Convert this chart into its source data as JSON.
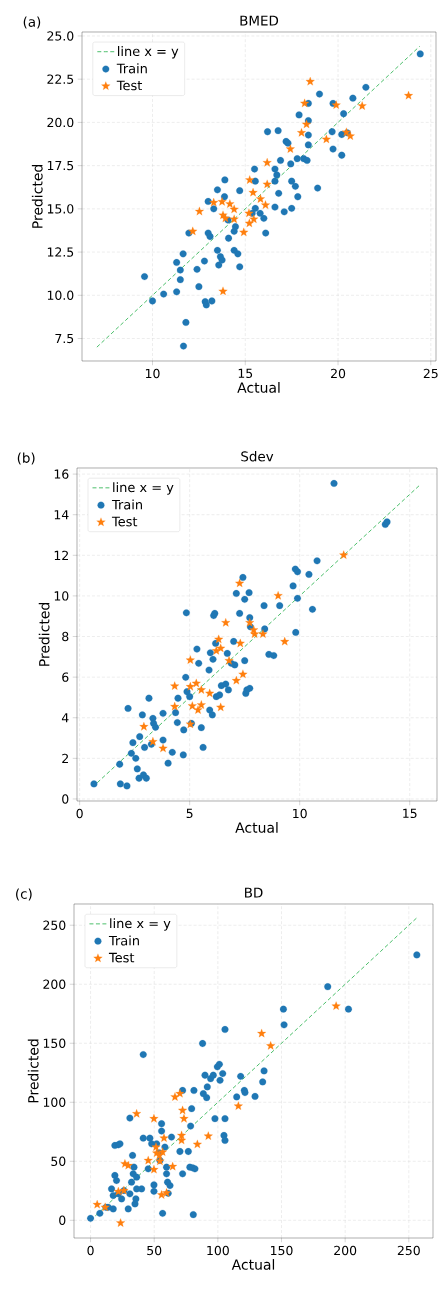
{
  "chart_data": [
    {
      "type": "scatter",
      "title": "BMED",
      "xlabel": "Actual",
      "ylabel": "Predicted",
      "annotations": [
        "(a)"
      ],
      "grid": true,
      "legend": "top left",
      "xlim": [
        6.2,
        25.28
      ],
      "ylim": [
        6.2,
        25.23
      ],
      "xticks": [
        10,
        15,
        20,
        25
      ],
      "yticks": [
        {
          "value": 7.5,
          "label": "7.5"
        },
        {
          "value": 10,
          "label": "10.0"
        },
        {
          "value": 12.5,
          "label": "12.5"
        },
        {
          "value": 15,
          "label": "15.0"
        },
        {
          "value": 17.5,
          "label": "17.5"
        },
        {
          "value": 20,
          "label": "20.0"
        },
        {
          "value": 22.5,
          "label": "22.5"
        },
        {
          "value": 25,
          "label": "25.0"
        }
      ],
      "series": [
        {
          "name": "line x = y",
          "type": "line",
          "line_style": "dashed",
          "marker": "none",
          "color": "#4cbf6b",
          "x": [
            7,
            24.4
          ],
          "values": [
            7,
            24.4
          ]
        },
        {
          "name": "Train",
          "marker": "circle",
          "color": "#1f77b4",
          "x": [
            9.57,
            10.0,
            10.6,
            11.3,
            11.3,
            11.5,
            11.5,
            11.65,
            11.8,
            11.67,
            11.96,
            12.4,
            12.5,
            12.8,
            12.84,
            12.9,
            13.2,
            13.0,
            13.1,
            13.0,
            13.3,
            13.5,
            13.5,
            13.66,
            13.57,
            13.75,
            13.9,
            13.88,
            14.07,
            14.1,
            14.4,
            14.47,
            14.4,
            14.6,
            14.7,
            14.7,
            15.5,
            15.54,
            15.54,
            15.37,
            15.8,
            16.0,
            16.1,
            16.2,
            16.6,
            16.6,
            16.6,
            16.7,
            16.77,
            16.8,
            16.9,
            17.1,
            17.2,
            17.3,
            17.45,
            17.5,
            17.5,
            17.7,
            17.83,
            17.8,
            17.9,
            18.15,
            18.33,
            18.4,
            18.4,
            18.4,
            18.4,
            18.9,
            19.0,
            19.73,
            19.68,
            19.73,
            20.2,
            20.3,
            20.5,
            20.8,
            21.5,
            24.43,
            20.2
          ],
          "values": [
            11.08,
            9.67,
            10.07,
            10.2,
            11.9,
            11.46,
            10.9,
            12.4,
            8.43,
            7.06,
            13.6,
            11.5,
            10.5,
            11.98,
            9.63,
            9.44,
            9.67,
            13.6,
            13.4,
            15.43,
            15.0,
            16.1,
            12.6,
            12.23,
            11.75,
            12.04,
            16.67,
            15.7,
            14.35,
            13.3,
            13.7,
            13.97,
            12.6,
            12.4,
            11.65,
            16.05,
            17.3,
            16.6,
            15.03,
            14.74,
            14.74,
            14.45,
            13.6,
            19.46,
            15.1,
            16.6,
            17.3,
            16.96,
            19.52,
            15.9,
            17.8,
            14.83,
            18.9,
            18.8,
            17.6,
            15.03,
            16.6,
            16.3,
            15.7,
            17.9,
            20.43,
            17.9,
            17.8,
            21.1,
            20.1,
            19.27,
            18.7,
            16.2,
            21.64,
            21.1,
            19.46,
            18.46,
            18.1,
            20.5,
            19.4,
            21.4,
            22.03,
            23.96,
            19.3
          ]
        },
        {
          "name": "Test",
          "marker": "star",
          "color": "#ff7f0e",
          "x": [
            12.17,
            12.53,
            13.3,
            13.8,
            13.75,
            13.8,
            13.93,
            14.17,
            14.4,
            14.4,
            14.92,
            15.2,
            15.24,
            15.22,
            15.42,
            15.46,
            15.82,
            16.09,
            16.18,
            16.18,
            17.43,
            18.03,
            18.2,
            18.3,
            18.5,
            19.37,
            19.9,
            20.45,
            20.66,
            21.3,
            23.8
          ],
          "values": [
            13.7,
            14.85,
            15.36,
            10.23,
            15.41,
            14.63,
            14.45,
            15.28,
            14.97,
            14.4,
            13.64,
            14.74,
            16.67,
            14.16,
            15.94,
            14.4,
            15.57,
            15.22,
            17.67,
            16.42,
            18.46,
            19.4,
            21.1,
            19.89,
            22.36,
            19.02,
            21.0,
            19.43,
            19.21,
            20.95,
            21.55
          ]
        }
      ]
    },
    {
      "type": "scatter",
      "title": "Sdev",
      "xlabel": "Actual",
      "ylabel": "Predicted",
      "annotations": [
        "(b)"
      ],
      "grid": true,
      "legend": "top left",
      "xlim": [
        -0.12,
        16.24
      ],
      "ylim": [
        -0.1,
        16.3
      ],
      "xticks": [
        0,
        5,
        10,
        15
      ],
      "yticks": [
        0,
        2,
        4,
        6,
        8,
        10,
        12,
        14,
        16
      ],
      "series": [
        {
          "name": "line x = y",
          "type": "line",
          "line_style": "dashed",
          "marker": "none",
          "color": "#4cbf6b",
          "x": [
            0.8,
            15.5
          ],
          "values": [
            0.8,
            15.5
          ]
        },
        {
          "name": "Train",
          "marker": "circle",
          "color": "#1f77b4",
          "x": [
            0.65,
            1.82,
            1.85,
            2.15,
            2.2,
            2.35,
            2.42,
            2.55,
            2.62,
            2.7,
            2.73,
            2.85,
            2.9,
            3.03,
            2.95,
            3.15,
            3.26,
            3.33,
            3.36,
            3.45,
            3.79,
            3.79,
            4.02,
            4.21,
            4.36,
            4.44,
            4.47,
            4.71,
            4.73,
            4.85,
            4.82,
            4.88,
            5.0,
            5.08,
            5.33,
            5.41,
            5.53,
            5.61,
            5.88,
            5.91,
            5.94,
            6.03,
            6.06,
            6.09,
            6.14,
            6.18,
            6.21,
            6.36,
            6.44,
            6.64,
            6.71,
            6.76,
            6.89,
            7.0,
            7.05,
            7.12,
            7.27,
            7.42,
            7.5,
            7.55,
            7.6,
            7.73,
            7.5,
            7.7,
            7.73,
            7.76,
            8.41,
            8.38,
            8.6,
            8.82,
            9.09,
            9.7,
            9.8,
            9.9,
            9.9,
            9.82,
            10.42,
            10.58,
            10.79,
            11.56,
            13.89,
            13.97
          ],
          "values": [
            0.74,
            1.71,
            0.74,
            0.64,
            4.46,
            2.25,
            2.77,
            2.0,
            1.48,
            1.02,
            3.07,
            4.14,
            1.18,
            1.02,
            2.54,
            4.96,
            2.69,
            3.97,
            3.72,
            3.53,
            4.22,
            2.9,
            1.76,
            2.3,
            4.25,
            3.76,
            4.96,
            2.17,
            3.4,
            9.17,
            5.99,
            5.28,
            5.04,
            3.72,
            7.38,
            6.68,
            3.51,
            2.54,
            6.35,
            4.38,
            7.2,
            4.14,
            6.88,
            9.03,
            9.14,
            7.66,
            5.04,
            5.12,
            5.58,
            5.66,
            7.17,
            5.37,
            6.68,
            7.76,
            6.6,
            10.12,
            9.14,
            10.91,
            6.81,
            5.2,
            5.37,
            5.45,
            9.83,
            10.16,
            8.93,
            8.48,
            8.37,
            9.52,
            7.12,
            7.06,
            9.52,
            10.49,
            11.32,
            11.19,
            9.88,
            8.2,
            11.06,
            9.34,
            11.73,
            15.54,
            13.52,
            13.64
          ]
        },
        {
          "name": "Test",
          "marker": "star",
          "color": "#ff7f0e",
          "x": [
            2.92,
            3.33,
            3.79,
            4.32,
            4.32,
            5.03,
            5.03,
            5.03,
            5.12,
            5.3,
            5.38,
            5.53,
            5.53,
            5.91,
            6.21,
            6.32,
            6.41,
            6.41,
            6.64,
            6.79,
            7.12,
            7.27,
            7.3,
            7.42,
            7.73,
            7.91,
            7.95,
            8.33,
            9.02,
            9.32,
            12.0
          ],
          "values": [
            3.56,
            2.82,
            2.49,
            4.55,
            5.56,
            6.84,
            3.68,
            5.53,
            4.58,
            5.69,
            4.38,
            4.63,
            5.37,
            5.2,
            7.3,
            7.86,
            7.42,
            4.51,
            8.68,
            6.81,
            5.83,
            10.62,
            7.66,
            6.14,
            8.68,
            8.32,
            8.12,
            8.12,
            10.01,
            7.75,
            12.01
          ]
        }
      ]
    },
    {
      "type": "scatter",
      "title": "BD",
      "xlabel": "Actual",
      "ylabel": "Predicted",
      "annotations": [
        "(c)"
      ],
      "grid": true,
      "legend": "top left",
      "xlim": [
        -13,
        269
      ],
      "ylim": [
        -15,
        268
      ],
      "xticks": [
        0,
        50,
        100,
        150,
        200,
        250
      ],
      "yticks": [
        0,
        50,
        100,
        150,
        200,
        250
      ],
      "series": [
        {
          "name": "line x = y",
          "type": "line",
          "line_style": "dashed",
          "marker": "none",
          "color": "#4cbf6b",
          "x": [
            0,
            256
          ],
          "values": [
            0,
            256
          ]
        },
        {
          "name": "Train",
          "marker": "circle",
          "color": "#1f77b4",
          "x": [
            0,
            7.3,
            12.1,
            13.9,
            16.5,
            17.8,
            17.8,
            19.1,
            19.1,
            21.8,
            23.1,
            20.4,
            21.8,
            24.4,
            26.2,
            29.6,
            30.9,
            30.9,
            32.2,
            33,
            33.5,
            34.1,
            34.9,
            35.6,
            36.2,
            36.2,
            40.1,
            41.4,
            41.4,
            45.3,
            46.6,
            48,
            49.8,
            49.8,
            51.9,
            54,
            54.5,
            55.8,
            55.8,
            56.6,
            58.4,
            59.7,
            59.7,
            60.5,
            61,
            62.4,
            63.6,
            70.2,
            72.3,
            72.3,
            76.8,
            78,
            78.6,
            79.4,
            81.2,
            80.2,
            80.7,
            82,
            88,
            88.6,
            89.9,
            91.2,
            91.7,
            94.3,
            96.4,
            97.7,
            99.6,
            101.2,
            101.7,
            103.8,
            105.6,
            104.8,
            105.6,
            105.6,
            114.8,
            117.9,
            120.8,
            121.3,
            129.2,
            135.2,
            136.3,
            151.5,
            152,
            186.3,
            202.6,
            256.3
          ],
          "values": [
            1.7,
            5.9,
            11,
            11,
            26.6,
            21,
            9.6,
            38,
            63.4,
            64,
            64.8,
            33.7,
            22.4,
            18.1,
            25.2,
            9.6,
            86.6,
            22.4,
            32.3,
            55,
            39.4,
            45,
            13.9,
            18.1,
            36.5,
            26.6,
            26.6,
            140.4,
            69.6,
            43.6,
            69.6,
            64.8,
            30,
            24.6,
            64.8,
            57.2,
            50.7,
            81.8,
            75.6,
            5.9,
            62,
            45,
            39.4,
            32.3,
            22.9,
            29.4,
            70.5,
            58.3,
            39.4,
            110,
            58.3,
            45,
            79.8,
            94.6,
            110,
            44.5,
            4.8,
            43.6,
            149.8,
            107.3,
            122.9,
            103.9,
            113,
            120,
            122.9,
            86.1,
            130,
            132.2,
            118.6,
            124.3,
            86.1,
            71.9,
            67.7,
            161.7,
            104.5,
            122,
            110.1,
            108.2,
            105,
            117.2,
            126.6,
            178.9,
            165.6,
            197.9,
            178.9,
            224.8
          ]
        },
        {
          "name": "Test",
          "marker": "star",
          "color": "#ff7f0e",
          "x": [
            5.2,
            11.5,
            23.6,
            21.8,
            26.2,
            27,
            29.6,
            36.2,
            45.3,
            49.8,
            49.8,
            51.4,
            51.9,
            54,
            54.5,
            55.8,
            56.6,
            57.7,
            59.7,
            64.5,
            66.3,
            70.2,
            71.5,
            71.5,
            72.3,
            73.4,
            83.9,
            92.5,
            116.1,
            134.4,
            141.5,
            192.9
          ],
          "values": [
            13.3,
            11,
            -2.3,
            24.3,
            25.2,
            47.8,
            46.4,
            90.3,
            50.7,
            86.1,
            43,
            62,
            56.9,
            54.9,
            50.1,
            21.5,
            57.8,
            69.6,
            23.2,
            45.6,
            104.5,
            107.3,
            67.7,
            71.9,
            93.1,
            86.1,
            64.3,
            71.3,
            96.8,
            158.3,
            147.8,
            181.5
          ]
        }
      ]
    }
  ]
}
